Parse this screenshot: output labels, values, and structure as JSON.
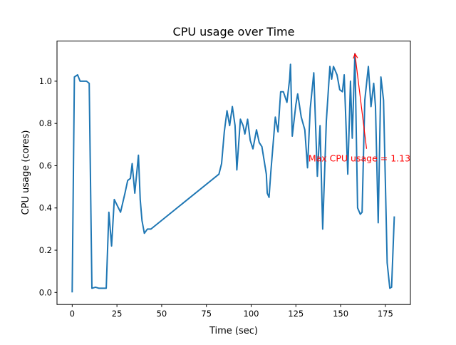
{
  "chart_data": {
    "type": "line",
    "title": "CPU usage over Time",
    "xlabel": "Time (sec)",
    "ylabel": "CPU usage (cores)",
    "xlim": [
      -8.5,
      189
    ],
    "ylim": [
      -0.057,
      1.19
    ],
    "xticks": [
      0,
      25,
      50,
      75,
      100,
      125,
      150,
      175
    ],
    "yticks": [
      0.0,
      0.2,
      0.4,
      0.6,
      0.8,
      1.0
    ],
    "xtick_labels": [
      "0",
      "25",
      "50",
      "75",
      "100",
      "125",
      "150",
      "175"
    ],
    "ytick_labels": [
      "0.0",
      "0.2",
      "0.4",
      "0.6",
      "0.8",
      "1.0"
    ],
    "grid": false,
    "series": [
      {
        "name": "CPU usage",
        "color": "#1f77b4",
        "points": [
          [
            0,
            0
          ],
          [
            1.2,
            1.02
          ],
          [
            3,
            1.03
          ],
          [
            4.4,
            1.0
          ],
          [
            8,
            1.0
          ],
          [
            9.5,
            0.99
          ],
          [
            11,
            0.02
          ],
          [
            13,
            0.025
          ],
          [
            15,
            0.02
          ],
          [
            19,
            0.02
          ],
          [
            20.5,
            0.38
          ],
          [
            22,
            0.22
          ],
          [
            23.5,
            0.44
          ],
          [
            27,
            0.38
          ],
          [
            29.5,
            0.47
          ],
          [
            31,
            0.53
          ],
          [
            32.5,
            0.54
          ],
          [
            33.5,
            0.61
          ],
          [
            35,
            0.47
          ],
          [
            37,
            0.65
          ],
          [
            38,
            0.44
          ],
          [
            39,
            0.34
          ],
          [
            40.3,
            0.28
          ],
          [
            42,
            0.3
          ],
          [
            44,
            0.3
          ],
          [
            82,
            0.56
          ],
          [
            83.5,
            0.61
          ],
          [
            85,
            0.76
          ],
          [
            86.5,
            0.86
          ],
          [
            88,
            0.79
          ],
          [
            89.5,
            0.88
          ],
          [
            91,
            0.79
          ],
          [
            92,
            0.58
          ],
          [
            94,
            0.82
          ],
          [
            95.5,
            0.79
          ],
          [
            96.5,
            0.75
          ],
          [
            98,
            0.82
          ],
          [
            99.5,
            0.72
          ],
          [
            101,
            0.68
          ],
          [
            103,
            0.77
          ],
          [
            104.5,
            0.71
          ],
          [
            106,
            0.69
          ],
          [
            108.5,
            0.56
          ],
          [
            109,
            0.47
          ],
          [
            110,
            0.45
          ],
          [
            111,
            0.57
          ],
          [
            113.5,
            0.83
          ],
          [
            115,
            0.76
          ],
          [
            116.5,
            0.95
          ],
          [
            118,
            0.95
          ],
          [
            120,
            0.9
          ],
          [
            121.5,
            1.01
          ],
          [
            122,
            1.08
          ],
          [
            123,
            0.74
          ],
          [
            125,
            0.89
          ],
          [
            126,
            0.94
          ],
          [
            128,
            0.83
          ],
          [
            130,
            0.77
          ],
          [
            131.5,
            0.59
          ],
          [
            133,
            0.87
          ],
          [
            135,
            1.04
          ],
          [
            137,
            0.55
          ],
          [
            138.5,
            0.79
          ],
          [
            140,
            0.3
          ],
          [
            142,
            0.81
          ],
          [
            144,
            1.07
          ],
          [
            145,
            1.01
          ],
          [
            146,
            1.07
          ],
          [
            148,
            1.03
          ],
          [
            149.5,
            0.96
          ],
          [
            151,
            0.95
          ],
          [
            152,
            1.03
          ],
          [
            154,
            0.56
          ],
          [
            155.5,
            1.0
          ],
          [
            156.5,
            0.73
          ],
          [
            158,
            1.13
          ],
          [
            159.5,
            0.4
          ],
          [
            161,
            0.37
          ],
          [
            162,
            0.38
          ],
          [
            163.5,
            0.91
          ],
          [
            165.5,
            1.07
          ],
          [
            167,
            0.88
          ],
          [
            168.5,
            0.99
          ],
          [
            169.5,
            0.88
          ],
          [
            171,
            0.33
          ],
          [
            172.5,
            1.02
          ],
          [
            174,
            0.91
          ],
          [
            176,
            0.14
          ],
          [
            177.5,
            0.02
          ],
          [
            178.5,
            0.025
          ],
          [
            180,
            0.36
          ]
        ]
      }
    ],
    "annotation": {
      "text": "Max CPU usage = 1.13",
      "color": "#ff0000",
      "xy": [
        158,
        1.13
      ],
      "arrow_from": [
        164.5,
        0.68
      ],
      "text_pos": [
        132,
        0.62
      ]
    }
  }
}
